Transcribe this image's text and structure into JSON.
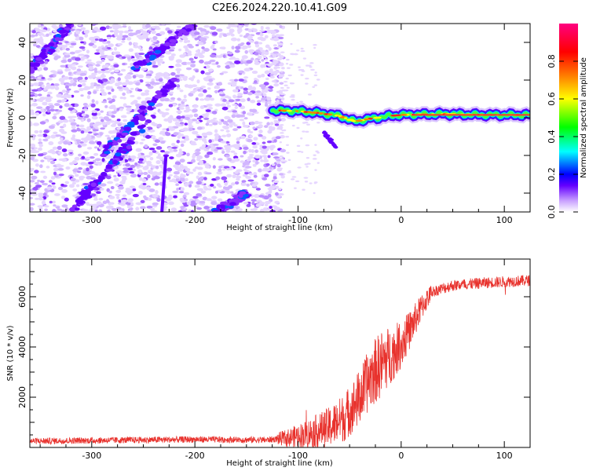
{
  "chart_data": [
    {
      "type": "heatmap",
      "title": "C2E6.2024.220.10.41.G09",
      "xlabel": "Height of straight line (km)",
      "ylabel": "Frequency (Hz)",
      "xlim": [
        -360,
        125
      ],
      "ylim": [
        -50,
        50
      ],
      "x_ticks": [
        -300,
        -200,
        -100,
        0,
        100
      ],
      "y_ticks": [
        -40,
        -20,
        0,
        20,
        40
      ],
      "colorbar": {
        "label": "Normalized spectral amplitude",
        "range": [
          0.0,
          1.0
        ],
        "ticks": [
          "0.0",
          "0.2",
          "0.4",
          "0.6",
          "0.8"
        ],
        "colors": [
          "#ffffff",
          "#c8a0ff",
          "#6400ff",
          "#0000ff",
          "#00ffff",
          "#00ff00",
          "#ffff00",
          "#ff8000",
          "#ff0000",
          "#ff0080"
        ]
      },
      "features": {
        "noise_region_x": [
          -360,
          -120
        ],
        "signal_line": {
          "x": [
            -125,
            -100,
            -80,
            -60,
            -45,
            -30,
            -10,
            0,
            40,
            80,
            125
          ],
          "y": [
            4,
            3.5,
            2.5,
            1,
            -2,
            -0.5,
            1,
            1.5,
            2,
            1.5,
            1.5
          ]
        },
        "diagonal_streaks": [
          {
            "x1": -290,
            "y1": -20,
            "x2": -220,
            "y2": 20
          },
          {
            "x1": -360,
            "y1": 25,
            "x2": -320,
            "y2": 50
          },
          {
            "x1": -260,
            "y1": 25,
            "x2": -200,
            "y2": 50
          },
          {
            "x1": -320,
            "y1": -50,
            "x2": -250,
            "y2": -5
          },
          {
            "x1": -180,
            "y1": -50,
            "x2": -150,
            "y2": -40
          }
        ]
      }
    },
    {
      "type": "line",
      "xlabel": "Height of straight line (km)",
      "ylabel": "SNR (10 * v/v)",
      "xlim": [
        -360,
        125
      ],
      "ylim": [
        0,
        7500
      ],
      "x_ticks": [
        -300,
        -200,
        -100,
        0,
        100
      ],
      "y_ticks": [
        2000,
        4000,
        6000
      ],
      "line_color": "#e8322d",
      "envelope": {
        "x": [
          -360,
          -300,
          -200,
          -130,
          -110,
          -90,
          -70,
          -55,
          -40,
          -30,
          -20,
          -10,
          0,
          10,
          20,
          30,
          50,
          80,
          100,
          125
        ],
        "y": [
          250,
          280,
          320,
          300,
          380,
          550,
          800,
          1200,
          2000,
          2800,
          3300,
          3700,
          4100,
          4800,
          5600,
          6200,
          6450,
          6550,
          6600,
          6650
        ]
      }
    }
  ]
}
